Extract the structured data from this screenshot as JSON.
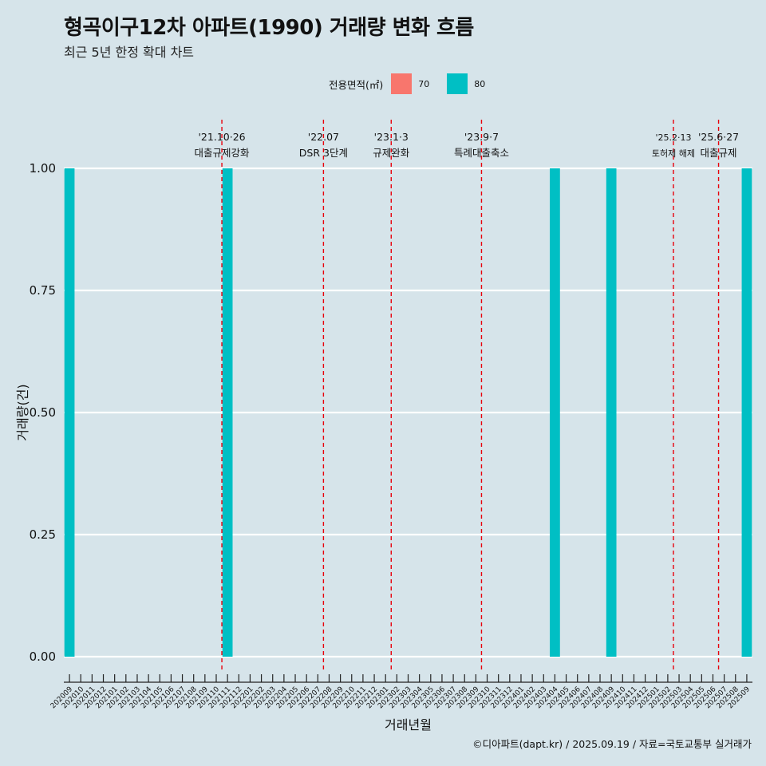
{
  "chart_data": {
    "type": "bar",
    "title": "형곡이구12차 아파트(1990) 거래량 변화 흐름",
    "subtitle": "최근 5년 한정 확대 차트",
    "xlabel": "거래년월",
    "ylabel": "거래량(건)",
    "ylim": [
      0,
      1
    ],
    "yticks": [
      "0.00",
      "0.25",
      "0.50",
      "0.75",
      "1.00"
    ],
    "grid": true,
    "legend": {
      "title": "전용면적(㎡)",
      "position": "top",
      "entries": [
        {
          "label": "70",
          "color": "#f8766d"
        },
        {
          "label": "80",
          "color": "#00bfc4"
        }
      ]
    },
    "categories": [
      "202009",
      "202010",
      "202011",
      "202012",
      "202101",
      "202102",
      "202103",
      "202104",
      "202105",
      "202106",
      "202107",
      "202108",
      "202109",
      "202110",
      "202111",
      "202112",
      "202201",
      "202202",
      "202203",
      "202204",
      "202205",
      "202206",
      "202207",
      "202208",
      "202209",
      "202210",
      "202211",
      "202212",
      "202301",
      "202302",
      "202303",
      "202304",
      "202305",
      "202306",
      "202307",
      "202308",
      "202309",
      "202310",
      "202311",
      "202312",
      "202401",
      "202402",
      "202403",
      "202404",
      "202405",
      "202406",
      "202407",
      "202408",
      "202409",
      "202410",
      "202411",
      "202412",
      "202501",
      "202502",
      "202503",
      "202504",
      "202505",
      "202506",
      "202507",
      "202508",
      "202509"
    ],
    "series": [
      {
        "name": "70",
        "color": "#f8766d",
        "values": {}
      },
      {
        "name": "80",
        "color": "#00bfc4",
        "values": {
          "202009": 1,
          "202111": 1,
          "202404": 1,
          "202409": 1,
          "202509": 1
        }
      }
    ],
    "annotations": [
      {
        "pos": 13.5,
        "line1": "'21.10·26",
        "line2": "대출규제강화",
        "small": false
      },
      {
        "pos": 22.5,
        "line1": "'22.07",
        "line2": "DSR 3단계",
        "small": false
      },
      {
        "pos": 28.5,
        "line1": "'23.1·3",
        "line2": "규제완화",
        "small": false
      },
      {
        "pos": 36.5,
        "line1": "'23.9·7",
        "line2": "특례대출축소",
        "small": false
      },
      {
        "pos": 53.5,
        "line1": "'25.2·13",
        "line2": "토허제 해제",
        "small": true
      },
      {
        "pos": 57.5,
        "line1": "'25.6·27",
        "line2": "대출규제",
        "small": false
      }
    ]
  },
  "footer": "©디아파트(dapt.kr) / 2025.09.19 / 자료=국토교통부 실거래가"
}
